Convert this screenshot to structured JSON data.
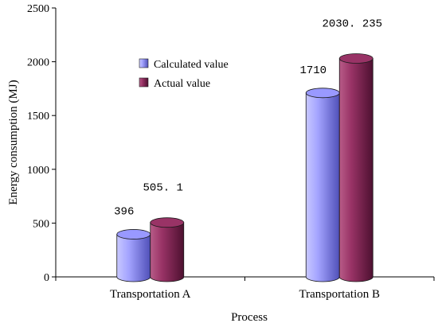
{
  "chart_data": {
    "type": "bar",
    "categories": [
      "Transportation A",
      "Transportation B"
    ],
    "series": [
      {
        "name": "Calculated value",
        "values": [
          396,
          1710
        ],
        "labels": [
          "396",
          "1710"
        ],
        "color": "#9999ff"
      },
      {
        "name": "Actual value",
        "values": [
          505.1,
          2030.235
        ],
        "labels": [
          "505. 1",
          "2030. 235"
        ],
        "color": "#993366"
      }
    ],
    "xlabel": "Process",
    "ylabel": "Energy consumption (MJ)",
    "ylim": [
      0,
      2500
    ],
    "yticks": [
      0,
      500,
      1000,
      1500,
      2000,
      2500
    ],
    "ytick_labels": [
      "0",
      "500",
      "1000",
      "1500",
      "2000",
      "2500"
    ],
    "grid": false,
    "legend_position": "top-left",
    "style": "3d-cylinder"
  }
}
